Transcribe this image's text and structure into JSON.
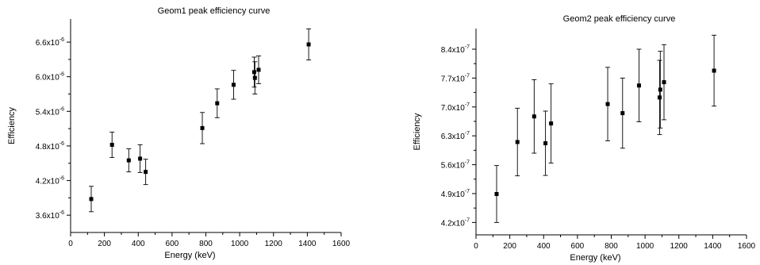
{
  "chart_data": [
    {
      "type": "scatter",
      "title": "Geom1 peak efficiency curve",
      "xlabel": "Energy (keV)",
      "ylabel": "Efficiency",
      "xlim": [
        0,
        1600
      ],
      "ylim": [
        3.3e-06,
        7e-06
      ],
      "x_ticks": [
        0,
        200,
        400,
        600,
        800,
        1000,
        1200,
        1400,
        1600
      ],
      "x_tick_labels": [
        "0",
        "200",
        "400",
        "600",
        "800",
        "1000",
        "1200",
        "1400",
        "1600"
      ],
      "y_ticks": [
        3.6e-06,
        4.2e-06,
        4.8e-06,
        5.4e-06,
        6e-06,
        6.6e-06
      ],
      "y_tick_labels": [
        {
          "mant": "3.6x10",
          "exp": "-6"
        },
        {
          "mant": "4.2x10",
          "exp": "-6"
        },
        {
          "mant": "4.8x10",
          "exp": "-6"
        },
        {
          "mant": "5.4x10",
          "exp": "-6"
        },
        {
          "mant": "6.0x10",
          "exp": "-6"
        },
        {
          "mant": "6.6x10",
          "exp": "-6"
        }
      ],
      "grid": false,
      "points": [
        {
          "x": 122,
          "y": 3.88e-06,
          "err": 2.2e-07
        },
        {
          "x": 245,
          "y": 4.82e-06,
          "err": 2.2e-07
        },
        {
          "x": 344,
          "y": 4.55e-06,
          "err": 2e-07
        },
        {
          "x": 411,
          "y": 4.58e-06,
          "err": 2.4e-07
        },
        {
          "x": 444,
          "y": 4.35e-06,
          "err": 2.2e-07
        },
        {
          "x": 779,
          "y": 5.11e-06,
          "err": 2.7e-07
        },
        {
          "x": 867,
          "y": 5.54e-06,
          "err": 2.5e-07
        },
        {
          "x": 964,
          "y": 5.86e-06,
          "err": 2.5e-07
        },
        {
          "x": 1086,
          "y": 6.08e-06,
          "err": 2.6e-07
        },
        {
          "x": 1090,
          "y": 5.98e-06,
          "err": 2.8e-07
        },
        {
          "x": 1112,
          "y": 6.12e-06,
          "err": 2.4e-07
        },
        {
          "x": 1408,
          "y": 6.56e-06,
          "err": 2.7e-07
        }
      ]
    },
    {
      "type": "scatter",
      "title": "Geom2 peak efficiency curve",
      "xlabel": "Energy (keV)",
      "ylabel": "Efficiency",
      "xlim": [
        0,
        1600
      ],
      "ylim": [
        3.9e-07,
        8.9e-07
      ],
      "x_ticks": [
        0,
        200,
        400,
        600,
        800,
        1000,
        1200,
        1400,
        1600
      ],
      "x_tick_labels": [
        "0",
        "200",
        "400",
        "600",
        "800",
        "1000",
        "1200",
        "1400",
        "1600"
      ],
      "y_ticks": [
        4.2e-07,
        4.9e-07,
        5.6e-07,
        6.3e-07,
        7e-07,
        7.7e-07,
        8.4e-07
      ],
      "y_tick_labels": [
        {
          "mant": "4.2x10",
          "exp": "-7"
        },
        {
          "mant": "4.9x10",
          "exp": "-7"
        },
        {
          "mant": "5.6x10",
          "exp": "-7"
        },
        {
          "mant": "6.3x10",
          "exp": "-7"
        },
        {
          "mant": "7.0x10",
          "exp": "-7"
        },
        {
          "mant": "7.7x10",
          "exp": "-7"
        },
        {
          "mant": "8.4x10",
          "exp": "-7"
        }
      ],
      "grid": false,
      "points": [
        {
          "x": 122,
          "y": 4.89e-07,
          "err": 6.9e-08
        },
        {
          "x": 245,
          "y": 6.15e-07,
          "err": 8.2e-08
        },
        {
          "x": 344,
          "y": 6.77e-07,
          "err": 8.9e-08
        },
        {
          "x": 411,
          "y": 6.12e-07,
          "err": 7.8e-08
        },
        {
          "x": 444,
          "y": 6.6e-07,
          "err": 9.6e-08
        },
        {
          "x": 779,
          "y": 7.07e-07,
          "err": 8.9e-08
        },
        {
          "x": 867,
          "y": 6.85e-07,
          "err": 8.5e-08
        },
        {
          "x": 964,
          "y": 7.52e-07,
          "err": 8.8e-08
        },
        {
          "x": 1086,
          "y": 7.23e-07,
          "err": 9e-08
        },
        {
          "x": 1090,
          "y": 7.42e-07,
          "err": 9.3e-08
        },
        {
          "x": 1112,
          "y": 7.6e-07,
          "err": 9.1e-08
        },
        {
          "x": 1408,
          "y": 7.88e-07,
          "err": 8.6e-08
        }
      ]
    }
  ]
}
